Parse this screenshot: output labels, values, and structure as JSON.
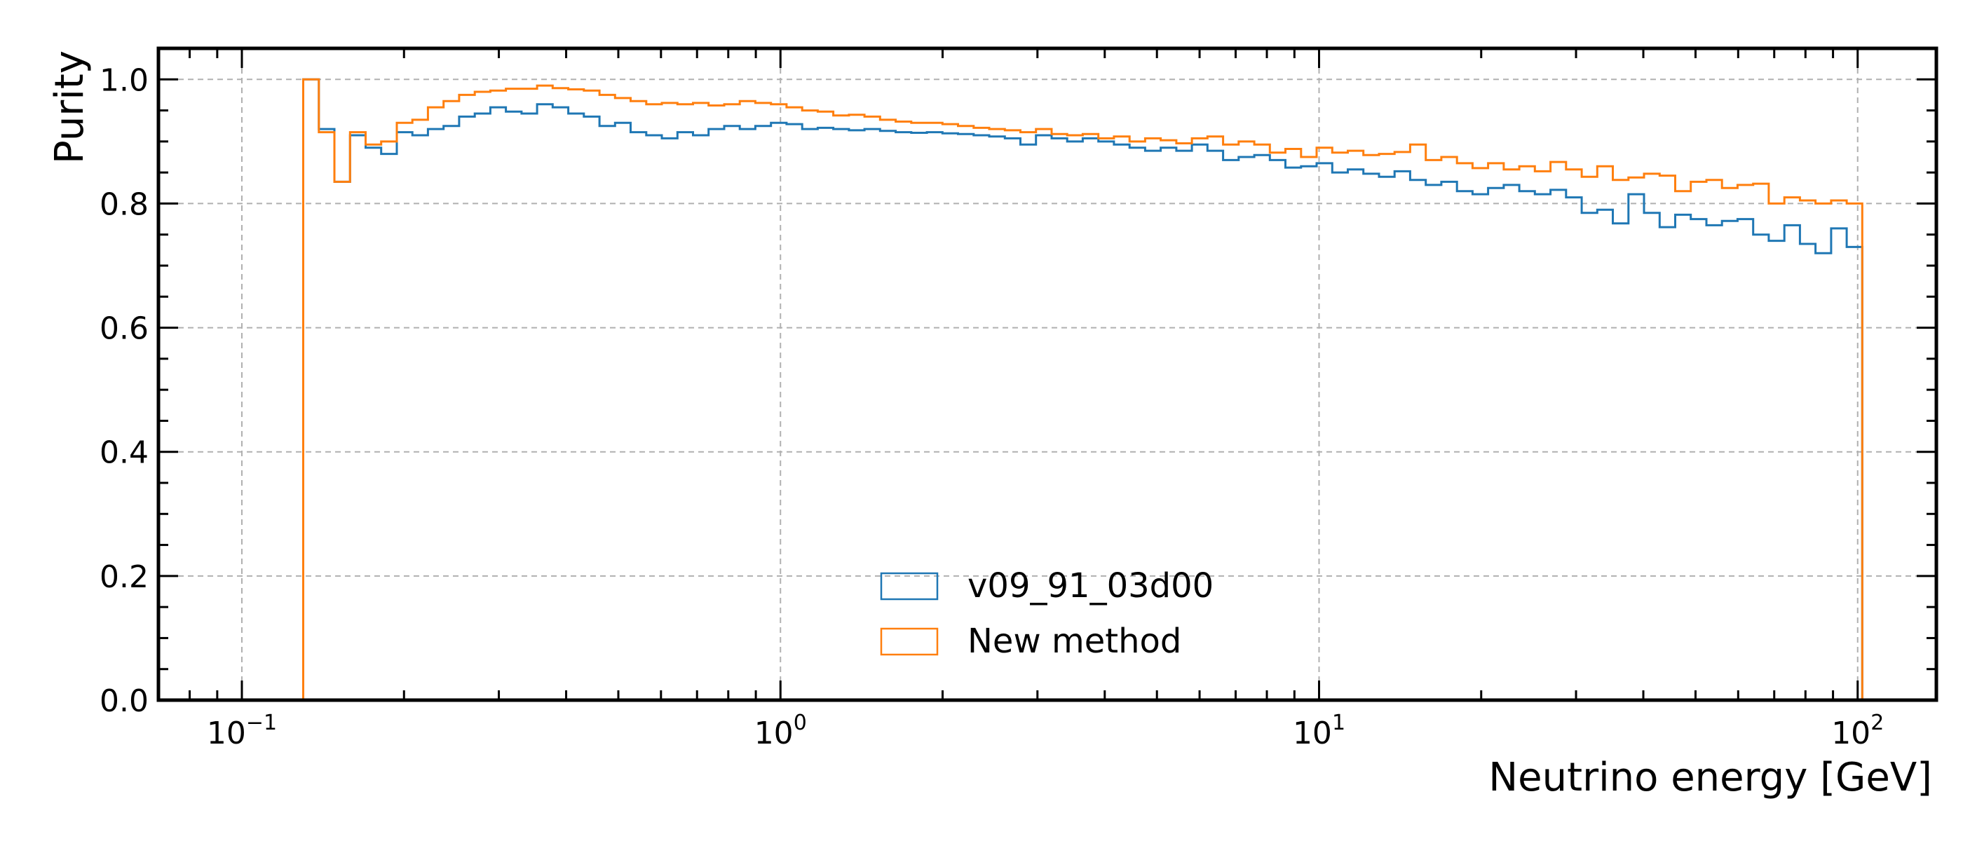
{
  "chart_data": {
    "type": "step",
    "title": "",
    "xlabel": "Neutrino energy [GeV]",
    "ylabel": "Purity",
    "xscale": "log",
    "xlim": [
      0.07,
      140
    ],
    "ylim": [
      0.0,
      1.05
    ],
    "grid": true,
    "legend_position": "lower-center",
    "x_ticks": [
      {
        "value": 0.1,
        "base": "10",
        "exp": "−1"
      },
      {
        "value": 1,
        "base": "10",
        "exp": "0"
      },
      {
        "value": 10,
        "base": "10",
        "exp": "1"
      },
      {
        "value": 100,
        "base": "10",
        "exp": "2"
      }
    ],
    "y_ticks": [
      {
        "value": 0.0,
        "label": "0.0"
      },
      {
        "value": 0.2,
        "label": "0.2"
      },
      {
        "value": 0.4,
        "label": "0.4"
      },
      {
        "value": 0.6,
        "label": "0.6"
      },
      {
        "value": 0.8,
        "label": "0.8"
      },
      {
        "value": 1.0,
        "label": "1.0"
      }
    ],
    "bins": {
      "min": 0.13,
      "max": 102,
      "count": 100
    },
    "series": [
      {
        "name": "v09_91_03d00",
        "color": "#1f77b4",
        "values": [
          1.0,
          0.92,
          0.835,
          0.91,
          0.89,
          0.88,
          0.915,
          0.91,
          0.92,
          0.925,
          0.94,
          0.945,
          0.955,
          0.948,
          0.945,
          0.96,
          0.955,
          0.945,
          0.94,
          0.925,
          0.93,
          0.915,
          0.91,
          0.905,
          0.915,
          0.91,
          0.92,
          0.925,
          0.92,
          0.925,
          0.93,
          0.928,
          0.92,
          0.922,
          0.92,
          0.918,
          0.92,
          0.917,
          0.915,
          0.914,
          0.915,
          0.913,
          0.912,
          0.91,
          0.908,
          0.905,
          0.895,
          0.91,
          0.905,
          0.9,
          0.905,
          0.9,
          0.895,
          0.89,
          0.885,
          0.89,
          0.885,
          0.895,
          0.885,
          0.87,
          0.875,
          0.878,
          0.87,
          0.858,
          0.86,
          0.865,
          0.85,
          0.855,
          0.848,
          0.843,
          0.852,
          0.838,
          0.83,
          0.835,
          0.82,
          0.815,
          0.825,
          0.83,
          0.82,
          0.815,
          0.822,
          0.81,
          0.785,
          0.79,
          0.768,
          0.815,
          0.785,
          0.762,
          0.782,
          0.775,
          0.765,
          0.772,
          0.775,
          0.75,
          0.74,
          0.765,
          0.735,
          0.72,
          0.76,
          0.73
        ]
      },
      {
        "name": "New method",
        "color": "#ff7f0e",
        "values": [
          1.0,
          0.915,
          0.835,
          0.915,
          0.895,
          0.9,
          0.93,
          0.935,
          0.955,
          0.965,
          0.975,
          0.98,
          0.982,
          0.985,
          0.985,
          0.99,
          0.986,
          0.984,
          0.982,
          0.975,
          0.97,
          0.965,
          0.96,
          0.962,
          0.96,
          0.962,
          0.958,
          0.96,
          0.965,
          0.962,
          0.96,
          0.955,
          0.95,
          0.948,
          0.942,
          0.943,
          0.94,
          0.935,
          0.932,
          0.93,
          0.93,
          0.928,
          0.925,
          0.922,
          0.92,
          0.918,
          0.915,
          0.92,
          0.912,
          0.91,
          0.912,
          0.905,
          0.908,
          0.9,
          0.905,
          0.902,
          0.897,
          0.905,
          0.908,
          0.895,
          0.9,
          0.895,
          0.882,
          0.888,
          0.875,
          0.89,
          0.882,
          0.885,
          0.878,
          0.88,
          0.883,
          0.895,
          0.87,
          0.875,
          0.865,
          0.857,
          0.865,
          0.855,
          0.86,
          0.852,
          0.867,
          0.855,
          0.843,
          0.86,
          0.838,
          0.842,
          0.848,
          0.845,
          0.82,
          0.835,
          0.838,
          0.825,
          0.83,
          0.832,
          0.8,
          0.81,
          0.805,
          0.8,
          0.805,
          0.8
        ]
      }
    ]
  }
}
